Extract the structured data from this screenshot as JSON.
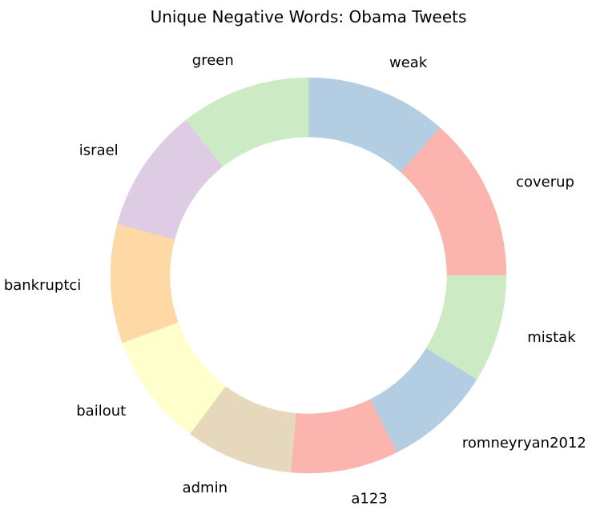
{
  "chart_data": {
    "type": "pie",
    "donut": true,
    "title": "Unique Negative Words: Obama Tweets",
    "start_angle_deg": 0,
    "direction": "counterclockwise",
    "slices": [
      {
        "label": "coverup",
        "value": 14.5,
        "color": "#fbb4ae"
      },
      {
        "label": "weak",
        "value": 12.5,
        "color": "#b3cde3"
      },
      {
        "label": "green",
        "value": 11.5,
        "color": "#ccebc5"
      },
      {
        "label": "israel",
        "value": 11.0,
        "color": "#decbe4"
      },
      {
        "label": "bankruptci",
        "value": 10.5,
        "color": "#fed9a6"
      },
      {
        "label": "bailout",
        "value": 10.0,
        "color": "#ffffcc"
      },
      {
        "label": "admin",
        "value": 9.5,
        "color": "#e5d8bd"
      },
      {
        "label": "a123",
        "value": 9.5,
        "color": "#fbb4ae"
      },
      {
        "label": "romneyryan2012",
        "value": 9.5,
        "color": "#b3cde3"
      },
      {
        "label": "mistak",
        "value": 9.5,
        "color": "#ccebc5"
      }
    ]
  }
}
